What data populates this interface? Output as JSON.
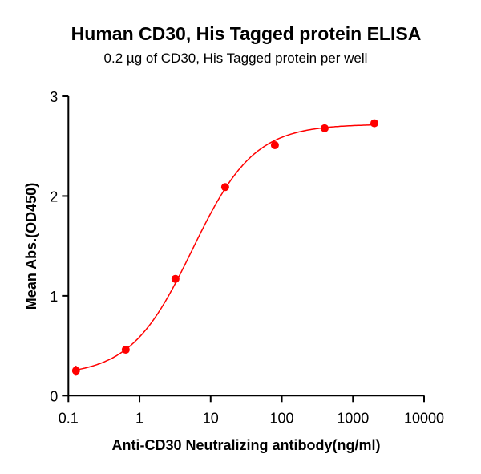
{
  "chart_data": {
    "type": "scatter",
    "title": "Human CD30, His Tagged protein ELISA",
    "subtitle": "0.2 µg of CD30, His Tagged protein per well",
    "xlabel": "Anti-CD30 Neutralizing antibody(ng/ml)",
    "ylabel": "Mean Abs.(OD450)",
    "xscale": "log",
    "xlim": [
      0.1,
      10000
    ],
    "ylim": [
      0,
      3
    ],
    "xticks": [
      "0.1",
      "1",
      "10",
      "100",
      "1000",
      "10000"
    ],
    "yticks": [
      "0",
      "1",
      "2",
      "3"
    ],
    "grid": false,
    "fit": "sigmoidal dose-response curve",
    "color": "#ff0000",
    "x": [
      0.128,
      0.64,
      3.2,
      16,
      80,
      400,
      2000
    ],
    "y": [
      0.25,
      0.46,
      1.17,
      2.09,
      2.51,
      2.68,
      2.73
    ],
    "error": [
      0.05,
      0.02,
      0.02,
      0.02,
      0.02,
      0.02,
      0.02
    ]
  }
}
